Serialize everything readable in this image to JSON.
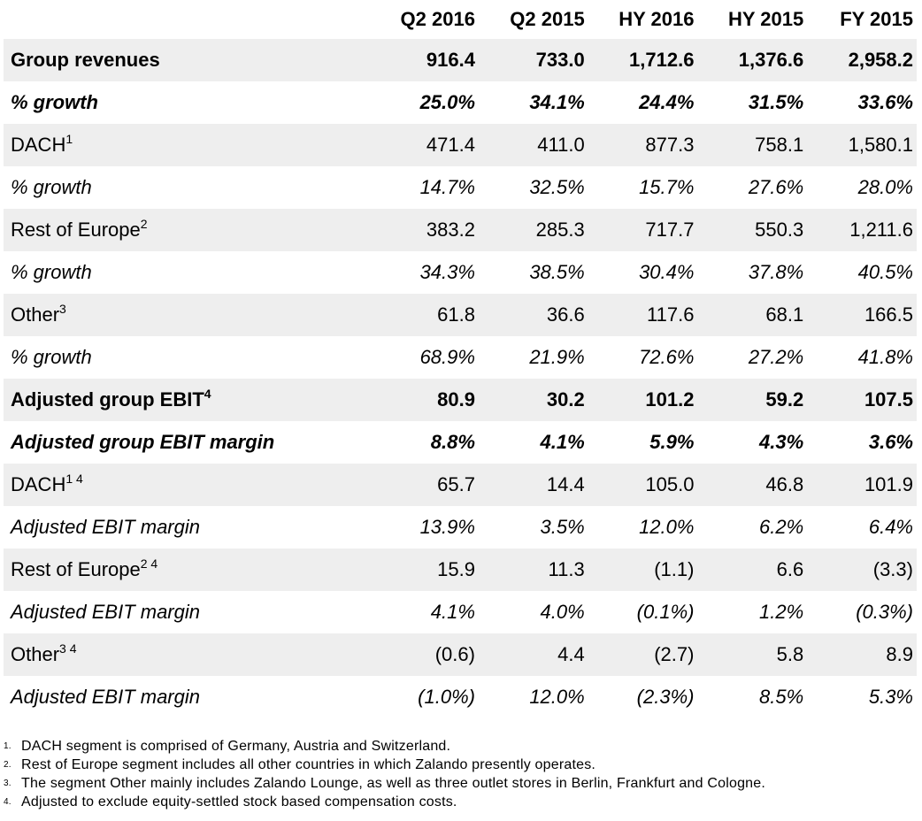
{
  "table": {
    "headers": [
      "",
      "Q2 2016",
      "Q2 2015",
      "HY 2016",
      "HY 2015",
      "FY 2015"
    ],
    "rows": [
      {
        "label": "Group revenues",
        "sup": "",
        "values": [
          "916.4",
          "733.0",
          "1,712.6",
          "1,376.6",
          "2,958.2"
        ],
        "style": "bold",
        "shaded": true
      },
      {
        "label": "% growth",
        "sup": "",
        "values": [
          "25.0%",
          "34.1%",
          "24.4%",
          "31.5%",
          "33.6%"
        ],
        "style": "bold italic",
        "shaded": false
      },
      {
        "label": "DACH",
        "sup": "1",
        "values": [
          "471.4",
          "411.0",
          "877.3",
          "758.1",
          "1,580.1"
        ],
        "style": "",
        "shaded": true
      },
      {
        "label": "% growth",
        "sup": "",
        "values": [
          "14.7%",
          "32.5%",
          "15.7%",
          "27.6%",
          "28.0%"
        ],
        "style": "italic",
        "shaded": false
      },
      {
        "label": "Rest of Europe",
        "sup": "2",
        "values": [
          "383.2",
          "285.3",
          "717.7",
          "550.3",
          "1,211.6"
        ],
        "style": "",
        "shaded": true
      },
      {
        "label": "% growth",
        "sup": "",
        "values": [
          "34.3%",
          "38.5%",
          "30.4%",
          "37.8%",
          "40.5%"
        ],
        "style": "italic",
        "shaded": false
      },
      {
        "label": "Other",
        "sup": "3",
        "values": [
          "61.8",
          "36.6",
          "117.6",
          "68.1",
          "166.5"
        ],
        "style": "",
        "shaded": true
      },
      {
        "label": "% growth",
        "sup": "",
        "values": [
          "68.9%",
          "21.9%",
          "72.6%",
          "27.2%",
          "41.8%"
        ],
        "style": "italic",
        "shaded": false
      },
      {
        "label": "Adjusted group EBIT",
        "sup": "4",
        "values": [
          "80.9",
          "30.2",
          "101.2",
          "59.2",
          "107.5"
        ],
        "style": "bold",
        "shaded": true
      },
      {
        "label": "Adjusted group EBIT margin",
        "sup": "",
        "values": [
          "8.8%",
          "4.1%",
          "5.9%",
          "4.3%",
          "3.6%"
        ],
        "style": "bold italic",
        "shaded": false
      },
      {
        "label": "DACH",
        "sup": "1 4",
        "values": [
          "65.7",
          "14.4",
          "105.0",
          "46.8",
          "101.9"
        ],
        "style": "",
        "shaded": true
      },
      {
        "label": "Adjusted EBIT margin",
        "sup": "",
        "values": [
          "13.9%",
          "3.5%",
          "12.0%",
          "6.2%",
          "6.4%"
        ],
        "style": "italic",
        "shaded": false
      },
      {
        "label": "Rest of Europe",
        "sup": "2 4",
        "values": [
          "15.9",
          "11.3",
          "(1.1)",
          "6.6",
          "(3.3)"
        ],
        "style": "",
        "shaded": true
      },
      {
        "label": "Adjusted EBIT margin",
        "sup": "",
        "values": [
          "4.1%",
          "4.0%",
          "(0.1%)",
          "1.2%",
          "(0.3%)"
        ],
        "style": "italic",
        "shaded": false
      },
      {
        "label": "Other",
        "sup": "3 4",
        "values": [
          "(0.6)",
          "4.4",
          "(2.7)",
          "5.8",
          "8.9"
        ],
        "style": "",
        "shaded": true
      },
      {
        "label": "Adjusted EBIT margin",
        "sup": "",
        "values": [
          "(1.0%)",
          "12.0%",
          "(2.3%)",
          "8.5%",
          "5.3%"
        ],
        "style": "italic",
        "shaded": false
      }
    ]
  },
  "footnotes": [
    {
      "num": "1.",
      "text": "DACH segment is comprised of Germany, Austria and Switzerland."
    },
    {
      "num": "2.",
      "text": "Rest of Europe segment includes all other countries in which Zalando presently operates."
    },
    {
      "num": "3.",
      "text": "The segment Other mainly includes Zalando Lounge, as well as three outlet stores in Berlin, Frankfurt and Cologne."
    },
    {
      "num": "4.",
      "text": "Adjusted to exclude equity-settled stock based compensation costs."
    }
  ],
  "colors": {
    "row_shade": "#eeeeee",
    "text": "#000000",
    "background": "#ffffff"
  }
}
